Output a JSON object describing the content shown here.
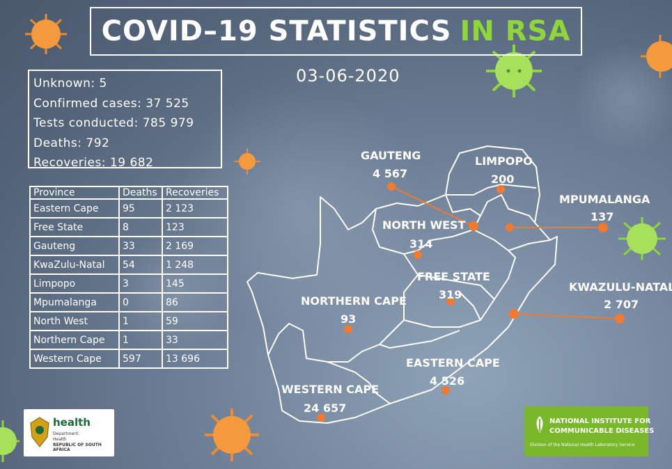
{
  "title": {
    "main": "COVID–19 STATISTICS",
    "highlight": "IN RSA"
  },
  "date": "03-06-2020",
  "summary": [
    "Unknown: 5",
    "Confirmed cases: 37 525",
    "Tests conducted: 785 979",
    "Deaths: 792",
    "Recoveries:  19 682"
  ],
  "table": {
    "headers": [
      "Province",
      "Deaths",
      "Recoveries"
    ],
    "rows": [
      [
        "Eastern Cape",
        "95",
        "2 123"
      ],
      [
        "Free State",
        "8",
        "123"
      ],
      [
        "Gauteng",
        "33",
        "2 169"
      ],
      [
        "KwaZulu-Natal",
        "54",
        "1 248"
      ],
      [
        "Limpopo",
        "3",
        "145"
      ],
      [
        "Mpumalanga",
        "0",
        "86"
      ],
      [
        "North West",
        "1",
        "59"
      ],
      [
        "Northern Cape",
        "1",
        "33"
      ],
      [
        "Western Cape",
        "597",
        "13 696"
      ]
    ]
  },
  "map": {
    "gauteng": {
      "name": "GAUTENG",
      "count": "4 567"
    },
    "limpopo": {
      "name": "LIMPOPO",
      "count": "200"
    },
    "mpumalanga": {
      "name": "MPUMALANGA",
      "count": "137"
    },
    "north_west": {
      "name": "NORTH WEST",
      "count": "314"
    },
    "free_state": {
      "name": "FREE STATE",
      "count": "319"
    },
    "kwazulu_natal": {
      "name": "KWAZULU-NATAL",
      "count": "2 707"
    },
    "northern_cape": {
      "name": "NORTHERN CAPE",
      "count": "93"
    },
    "eastern_cape": {
      "name": "EASTERN CAPE",
      "count": "4 526"
    },
    "western_cape": {
      "name": "WESTERN CAPE",
      "count": "24 657"
    }
  },
  "logos": {
    "health": {
      "name": "health",
      "line1": "Department:",
      "line2": "Health",
      "line3": "REPUBLIC OF SOUTH AFRICA"
    },
    "nicd": {
      "line1": "NATIONAL INSTITUTE FOR",
      "line2": "COMMUNICABLE DISEASES",
      "line3": "Division of the National Health Laboratory Service"
    }
  },
  "colors": {
    "accent_green": "#8fd63a",
    "marker_orange": "#f07a30",
    "nicd_green": "#78b82a"
  }
}
